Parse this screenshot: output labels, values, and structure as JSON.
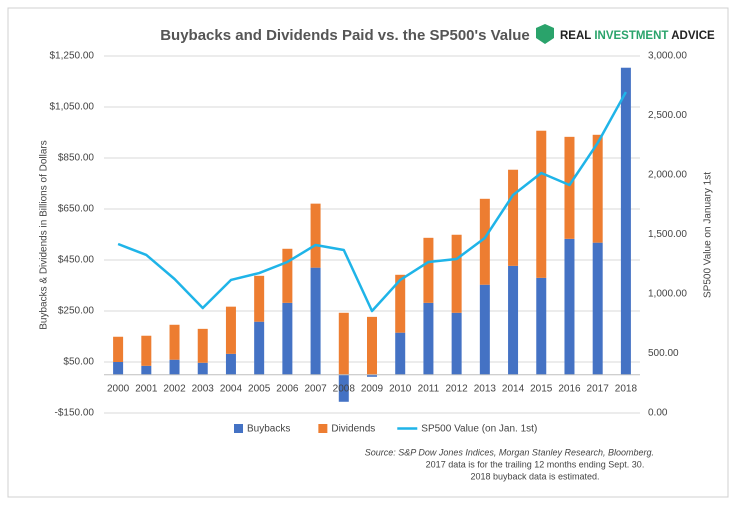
{
  "chart_data": {
    "type": "bar_line",
    "title": "Buybacks and Dividends Paid vs. the SP500's Value",
    "logo": [
      "REAL",
      "INVESTMENT",
      "ADVICE"
    ],
    "ylabel": "Buybacks & Dividends in Billions of Dollars",
    "y2label": "SP500 Value on January 1st",
    "categories": [
      "2000",
      "2001",
      "2002",
      "2003",
      "2004",
      "2005",
      "2006",
      "2007",
      "2008",
      "2009",
      "2010",
      "2011",
      "2012",
      "2013",
      "2014",
      "2015",
      "2016",
      "2017",
      "2018"
    ],
    "series": [
      {
        "name": "Buybacks",
        "color": "#4472c4",
        "kind": "bar",
        "values": [
          50,
          35,
          59,
          47,
          82,
          208,
          282,
          420,
          -106,
          -8,
          165,
          282,
          243,
          353,
          427,
          380,
          533,
          518,
          1204
        ]
      },
      {
        "name": "Dividends",
        "color": "#ed7d31",
        "kind": "bar",
        "values": [
          99,
          118,
          137,
          133,
          185,
          180,
          212,
          251,
          243,
          227,
          227,
          255,
          306,
          337,
          377,
          577,
          400,
          423,
          null
        ]
      },
      {
        "name": "SP500 Value (on Jan. 1st)",
        "color": "#1fb4e8",
        "kind": "line",
        "axis": "y2",
        "values": [
          1420,
          1328,
          1126,
          882,
          1118,
          1176,
          1269,
          1412,
          1370,
          857,
          1118,
          1269,
          1294,
          1471,
          1832,
          2017,
          1916,
          2269,
          2697
        ]
      }
    ],
    "ylim": [
      -150,
      1250
    ],
    "yticks": [
      {
        "value": -150,
        "label": "-$150.00"
      },
      {
        "value": 50,
        "label": "$50.00"
      },
      {
        "value": 250,
        "label": "$250.00"
      },
      {
        "value": 450,
        "label": "$450.00"
      },
      {
        "value": 650,
        "label": "$650.00"
      },
      {
        "value": 850,
        "label": "$850.00"
      },
      {
        "value": 1050,
        "label": "$1,050.00"
      },
      {
        "value": 1250,
        "label": "$1,250.00"
      }
    ],
    "y2lim": [
      0,
      3000
    ],
    "y2ticks": [
      {
        "value": 0,
        "label": "0.00"
      },
      {
        "value": 500,
        "label": "500.00"
      },
      {
        "value": 1000,
        "label": "1,000.00"
      },
      {
        "value": 1500,
        "label": "1,500.00"
      },
      {
        "value": 2000,
        "label": "2,000.00"
      },
      {
        "value": 2500,
        "label": "2,500.00"
      },
      {
        "value": 3000,
        "label": "3,000.00"
      }
    ],
    "grid": true,
    "note": [
      "Source: S&P Dow Jones Indices, Morgan Stanley Research, Bloomberg.",
      "2017 data is for the trailing 12 months ending Sept. 30.",
      "2018 buyback data is estimated."
    ]
  }
}
